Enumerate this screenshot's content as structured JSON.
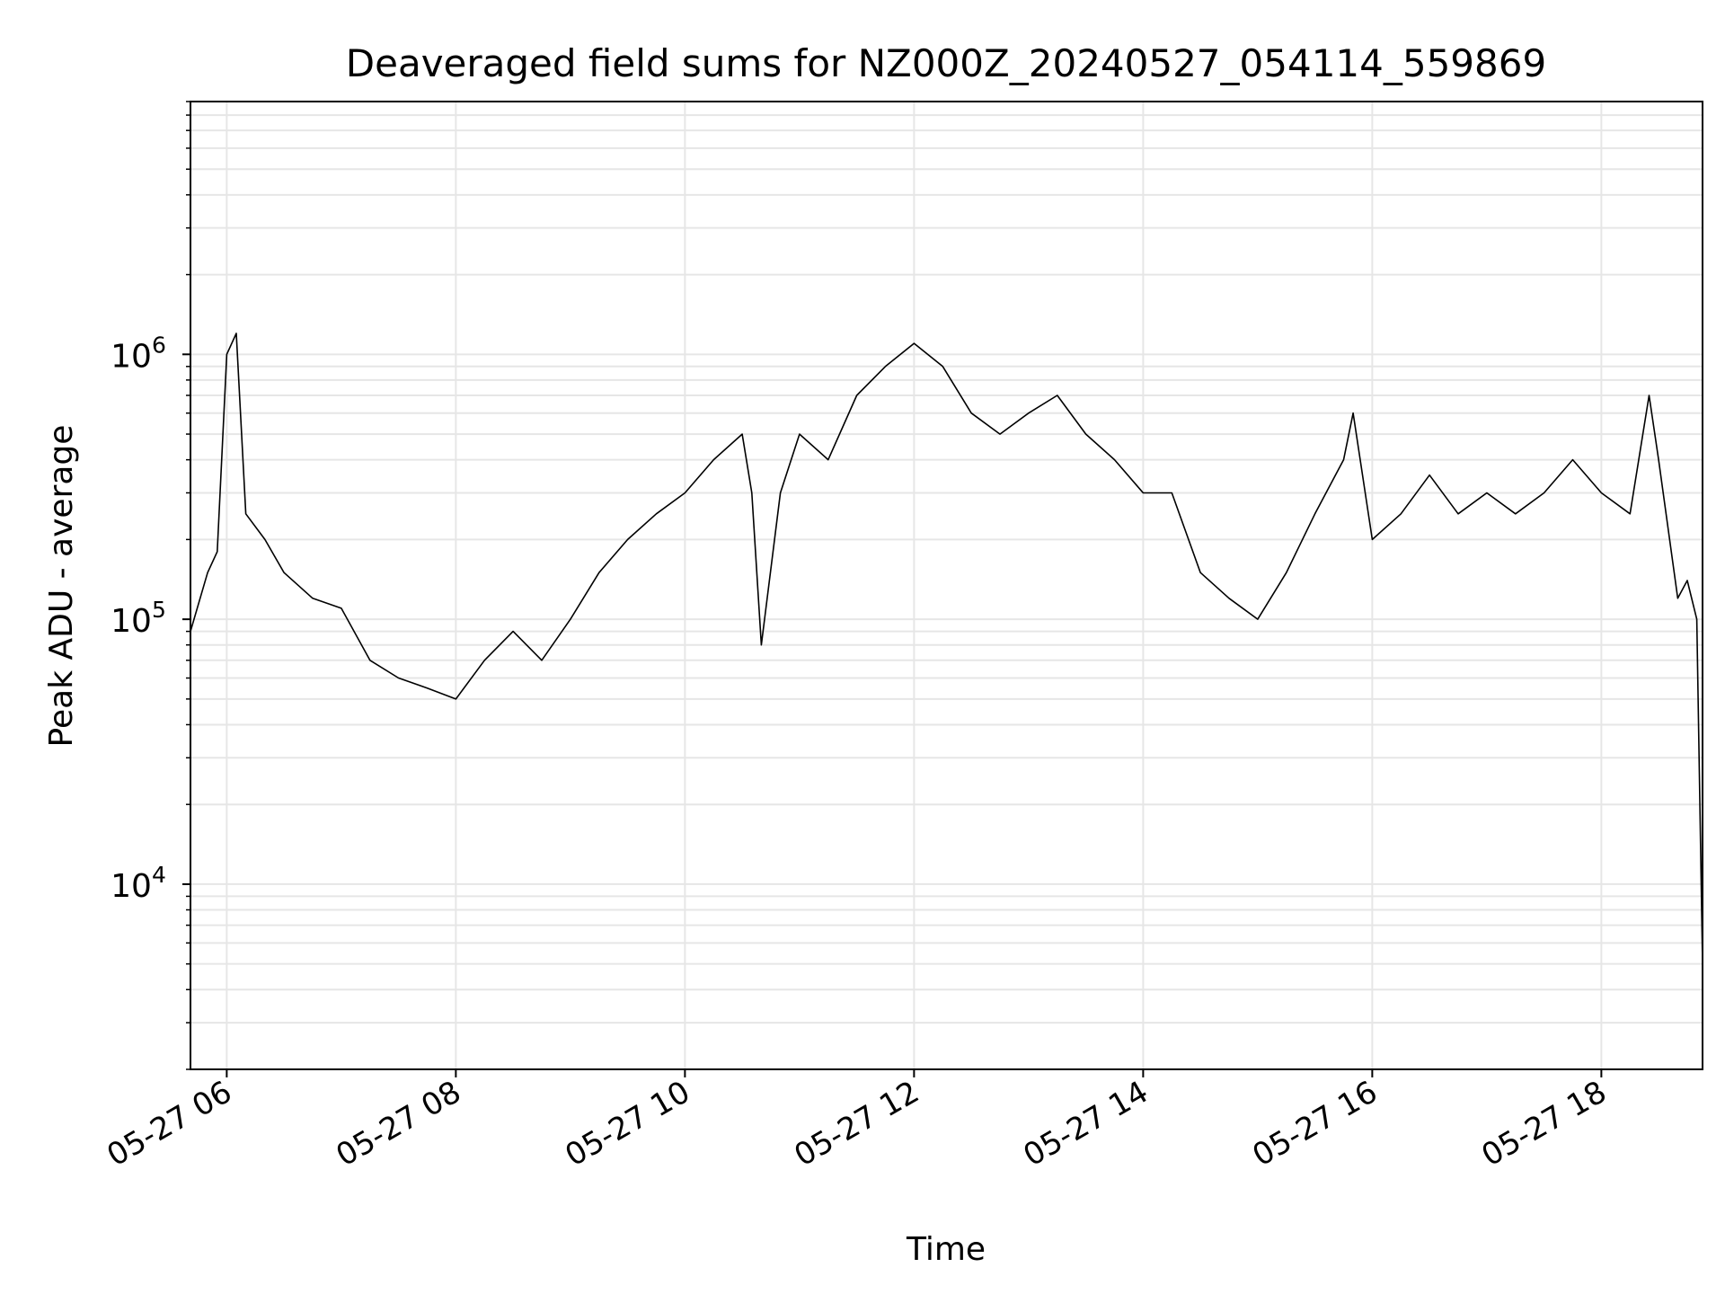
{
  "chart_data": {
    "type": "line",
    "title": "Deaveraged field sums for NZ000Z_20240527_054114_559869",
    "xlabel": "Time",
    "ylabel": "Peak ADU - average",
    "yscale": "log",
    "ylim": [
      2000,
      9000000
    ],
    "xlim": [
      "2024-05-27 05:41",
      "2024-05-27 18:53"
    ],
    "grid": true,
    "line_color": "#000000",
    "grid_color": "#e6e6e6",
    "x_ticks": [
      {
        "time": "2024-05-27 06:00",
        "label": "05-27 06"
      },
      {
        "time": "2024-05-27 08:00",
        "label": "05-27 08"
      },
      {
        "time": "2024-05-27 10:00",
        "label": "05-27 10"
      },
      {
        "time": "2024-05-27 12:00",
        "label": "05-27 12"
      },
      {
        "time": "2024-05-27 14:00",
        "label": "05-27 14"
      },
      {
        "time": "2024-05-27 16:00",
        "label": "05-27 16"
      },
      {
        "time": "2024-05-27 18:00",
        "label": "05-27 18"
      }
    ],
    "y_ticks": [
      {
        "value": 10000,
        "base": "10",
        "exp": "4"
      },
      {
        "value": 100000,
        "base": "10",
        "exp": "5"
      },
      {
        "value": 1000000,
        "base": "10",
        "exp": "6"
      }
    ],
    "series": [
      {
        "x": [
          "2024-05-27 05:41",
          "2024-05-27 05:50",
          "2024-05-27 05:55",
          "2024-05-27 06:00",
          "2024-05-27 06:05",
          "2024-05-27 06:10",
          "2024-05-27 06:20",
          "2024-05-27 06:30",
          "2024-05-27 06:45",
          "2024-05-27 07:00",
          "2024-05-27 07:15",
          "2024-05-27 07:30",
          "2024-05-27 07:45",
          "2024-05-27 08:00",
          "2024-05-27 08:15",
          "2024-05-27 08:30",
          "2024-05-27 08:45",
          "2024-05-27 09:00",
          "2024-05-27 09:15",
          "2024-05-27 09:30",
          "2024-05-27 09:45",
          "2024-05-27 10:00",
          "2024-05-27 10:15",
          "2024-05-27 10:30",
          "2024-05-27 10:35",
          "2024-05-27 10:40",
          "2024-05-27 10:50",
          "2024-05-27 11:00",
          "2024-05-27 11:15",
          "2024-05-27 11:30",
          "2024-05-27 11:45",
          "2024-05-27 12:00",
          "2024-05-27 12:15",
          "2024-05-27 12:30",
          "2024-05-27 12:45",
          "2024-05-27 13:00",
          "2024-05-27 13:15",
          "2024-05-27 13:30",
          "2024-05-27 13:45",
          "2024-05-27 14:00",
          "2024-05-27 14:15",
          "2024-05-27 14:30",
          "2024-05-27 14:45",
          "2024-05-27 15:00",
          "2024-05-27 15:15",
          "2024-05-27 15:30",
          "2024-05-27 15:45",
          "2024-05-27 15:50",
          "2024-05-27 16:00",
          "2024-05-27 16:15",
          "2024-05-27 16:30",
          "2024-05-27 16:45",
          "2024-05-27 17:00",
          "2024-05-27 17:15",
          "2024-05-27 17:30",
          "2024-05-27 17:45",
          "2024-05-27 18:00",
          "2024-05-27 18:15",
          "2024-05-27 18:25",
          "2024-05-27 18:30",
          "2024-05-27 18:40",
          "2024-05-27 18:45",
          "2024-05-27 18:50",
          "2024-05-27 18:53"
        ],
        "y": [
          90000,
          150000,
          180000,
          1000000,
          1200000,
          250000,
          200000,
          150000,
          120000,
          110000,
          70000,
          60000,
          55000,
          50000,
          70000,
          90000,
          70000,
          100000,
          150000,
          200000,
          250000,
          300000,
          400000,
          500000,
          300000,
          80000,
          300000,
          500000,
          400000,
          700000,
          900000,
          1100000,
          900000,
          600000,
          500000,
          600000,
          700000,
          500000,
          400000,
          300000,
          300000,
          150000,
          120000,
          100000,
          150000,
          250000,
          400000,
          600000,
          200000,
          250000,
          350000,
          250000,
          300000,
          250000,
          300000,
          400000,
          300000,
          250000,
          700000,
          400000,
          120000,
          140000,
          100000,
          5000
        ]
      }
    ]
  }
}
